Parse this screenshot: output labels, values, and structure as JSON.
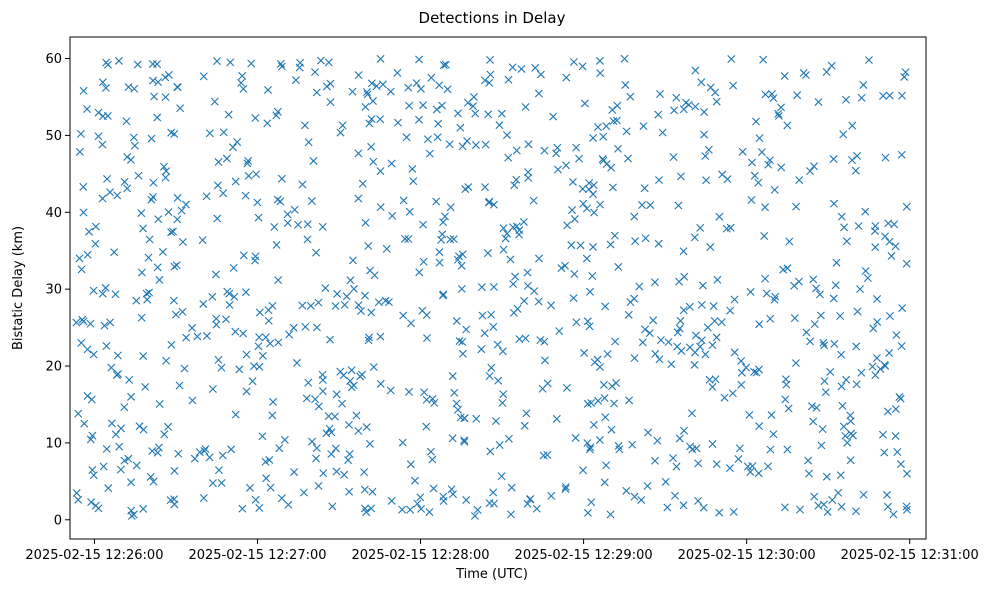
{
  "chart_data": {
    "type": "scatter",
    "title": "Detections in Delay",
    "xlabel": "Time (UTC)",
    "ylabel": "Bistatic Delay (km)",
    "marker": "x",
    "color": "#1f77b4",
    "grid": false,
    "legend": "none",
    "x_ticks": [
      "2025-02-15 12:26:00",
      "2025-02-15 12:27:00",
      "2025-02-15 12:28:00",
      "2025-02-15 12:29:00",
      "2025-02-15 12:30:00",
      "2025-02-15 12:31:00"
    ],
    "y_ticks": [
      "0",
      "10",
      "20",
      "30",
      "40",
      "50",
      "60"
    ],
    "xlim": [
      "2025-02-15 12:25:51",
      "2025-02-15 12:31:06"
    ],
    "ylim": [
      -2.5,
      62.8
    ],
    "x_data_range": [
      "2025-02-15 12:25:53",
      "2025-02-15 12:30:59"
    ],
    "y_data_range": [
      0.5,
      60
    ],
    "point_count": 1000,
    "sample_points": [
      {
        "t": "2025-02-15 12:25:56",
        "delay": 55.8
      },
      {
        "t": "2025-02-15 12:25:55",
        "delay": 50.2
      },
      {
        "t": "2025-02-15 12:25:54",
        "delay": 13.8
      },
      {
        "t": "2025-02-15 12:25:54",
        "delay": 2.6
      },
      {
        "t": "2025-02-15 12:26:09",
        "delay": 59.7
      },
      {
        "t": "2025-02-15 12:26:50",
        "delay": 59.5
      },
      {
        "t": "2025-02-15 12:27:40",
        "delay": 1.0
      },
      {
        "t": "2025-02-15 12:28:20",
        "delay": 0.5
      },
      {
        "t": "2025-02-15 12:29:06",
        "delay": 59.7
      },
      {
        "t": "2025-02-15 12:30:45",
        "delay": 59.8
      },
      {
        "t": "2025-02-15 12:30:58",
        "delay": 57.6
      },
      {
        "t": "2025-02-15 12:30:59",
        "delay": 6.0
      },
      {
        "t": "2025-02-15 12:30:52",
        "delay": 1.7
      }
    ]
  }
}
